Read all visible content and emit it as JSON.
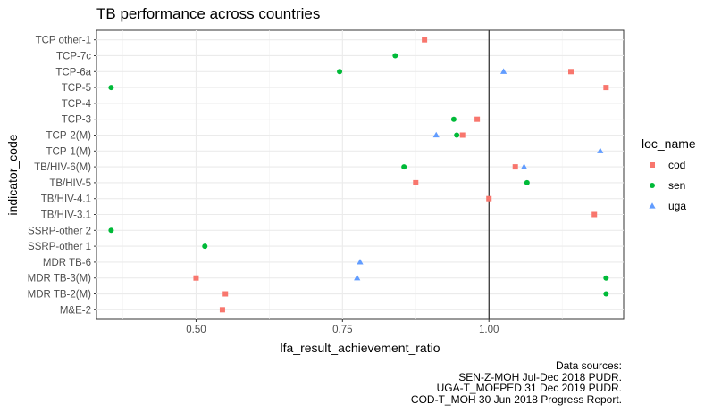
{
  "chart_data": {
    "type": "scatter",
    "title": "TB performance across countries",
    "xlabel": "lfa_result_achievement_ratio",
    "ylabel": "indicator_code",
    "xlim": [
      0.33,
      1.23
    ],
    "xticks": [
      0.5,
      0.75,
      1.0
    ],
    "xtick_labels": [
      "0.50",
      "0.75",
      "1.00"
    ],
    "reference_line": 1.0,
    "grid": true,
    "legend_position": "right",
    "categories": [
      "TCP other-1",
      "TCP-7c",
      "TCP-6a",
      "TCP-5",
      "TCP-4",
      "TCP-3",
      "TCP-2(M)",
      "TCP-1(M)",
      "TB/HIV-6(M)",
      "TB/HIV-5",
      "TB/HIV-4.1",
      "TB/HIV-3.1",
      "SSRP-other 2",
      "SSRP-other 1",
      "MDR TB-6",
      "MDR TB-3(M)",
      "MDR TB-2(M)",
      "M&E-2"
    ],
    "legend_title": "loc_name",
    "series": [
      {
        "name": "cod",
        "color": "#F8766D",
        "shape": "square",
        "points": [
          {
            "y": "TCP other-1",
            "x": 0.89
          },
          {
            "y": "TCP-6a",
            "x": 1.14
          },
          {
            "y": "TCP-5",
            "x": 1.2
          },
          {
            "y": "TCP-3",
            "x": 0.98
          },
          {
            "y": "TCP-2(M)",
            "x": 0.955
          },
          {
            "y": "TB/HIV-6(M)",
            "x": 1.045
          },
          {
            "y": "TB/HIV-5",
            "x": 0.875
          },
          {
            "y": "TB/HIV-4.1",
            "x": 1.0
          },
          {
            "y": "TB/HIV-3.1",
            "x": 1.18
          },
          {
            "y": "MDR TB-3(M)",
            "x": 0.5
          },
          {
            "y": "MDR TB-2(M)",
            "x": 0.55
          },
          {
            "y": "M&E-2",
            "x": 0.545
          }
        ]
      },
      {
        "name": "sen",
        "color": "#00BA38",
        "shape": "circle",
        "points": [
          {
            "y": "TCP-7c",
            "x": 0.84
          },
          {
            "y": "TCP-6a",
            "x": 0.745
          },
          {
            "y": "TCP-5",
            "x": 0.355
          },
          {
            "y": "TCP-3",
            "x": 0.94
          },
          {
            "y": "TCP-2(M)",
            "x": 0.945
          },
          {
            "y": "TB/HIV-6(M)",
            "x": 0.855
          },
          {
            "y": "TB/HIV-5",
            "x": 1.065
          },
          {
            "y": "SSRP-other 2",
            "x": 0.355
          },
          {
            "y": "SSRP-other 1",
            "x": 0.515
          },
          {
            "y": "MDR TB-3(M)",
            "x": 1.2
          },
          {
            "y": "MDR TB-2(M)",
            "x": 1.2
          }
        ]
      },
      {
        "name": "uga",
        "color": "#619CFF",
        "shape": "triangle",
        "points": [
          {
            "y": "TCP-6a",
            "x": 1.025
          },
          {
            "y": "TCP-2(M)",
            "x": 0.91
          },
          {
            "y": "TCP-1(M)",
            "x": 1.19
          },
          {
            "y": "TB/HIV-6(M)",
            "x": 1.06
          },
          {
            "y": "MDR TB-6",
            "x": 0.78
          },
          {
            "y": "MDR TB-3(M)",
            "x": 0.775
          }
        ]
      }
    ],
    "caption": [
      "Data sources:",
      "SEN-Z-MOH Jul-Dec 2018 PUDR.",
      "UGA-T_MOFPED 31 Dec 2019 PUDR.",
      "COD-T_MOH 30 Jun 2018 Progress Report."
    ]
  }
}
